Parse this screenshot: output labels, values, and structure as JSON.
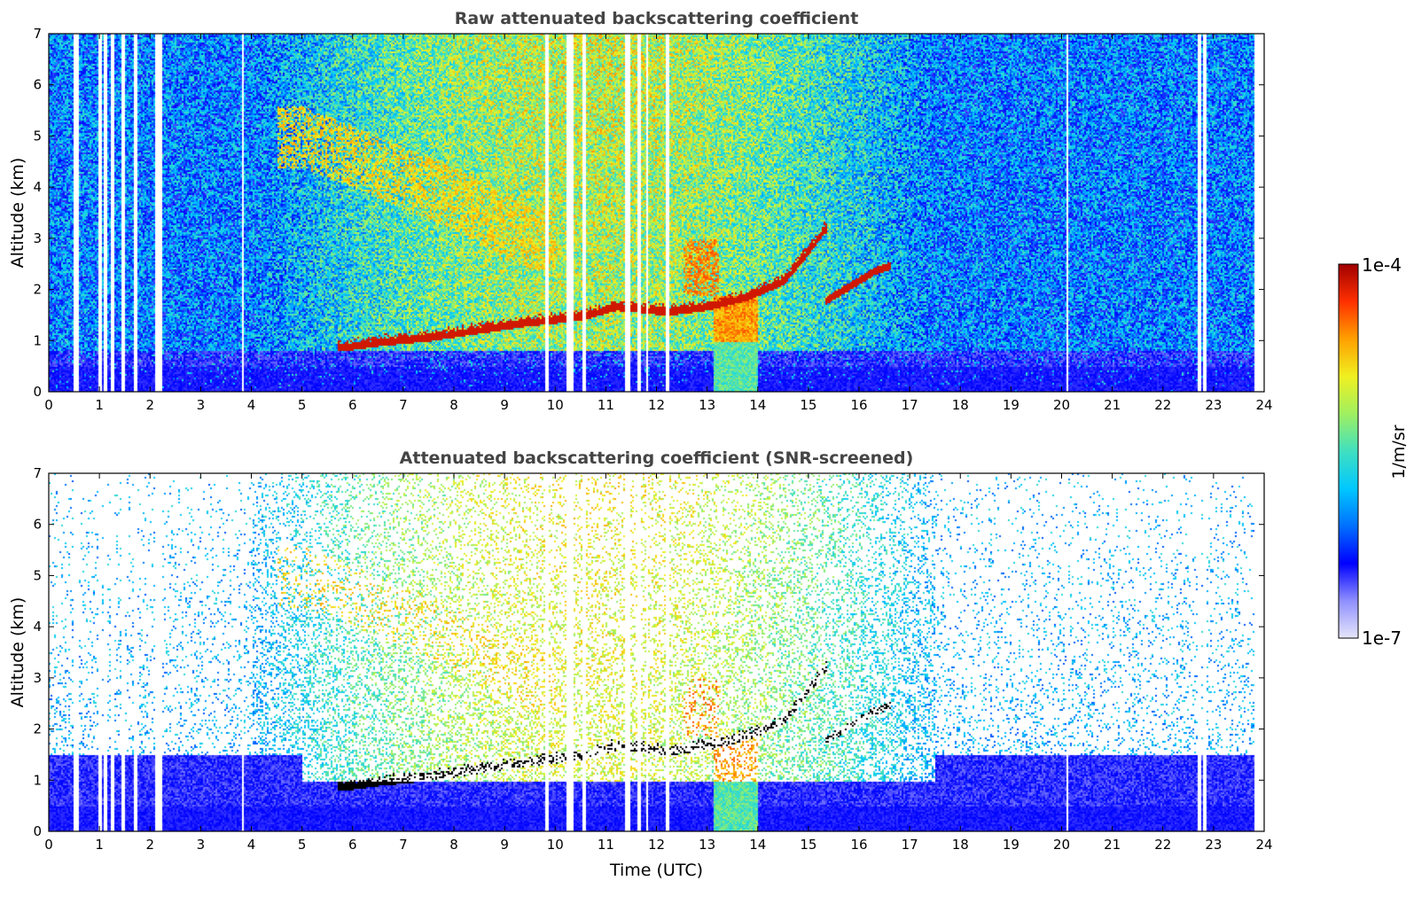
{
  "chart_data": [
    {
      "type": "heatmap",
      "title": "Raw attenuated backscattering coefficient",
      "xlabel": "",
      "ylabel": "Altitude (km)",
      "xlim": [
        0,
        24
      ],
      "ylim": [
        0,
        7
      ],
      "x_ticks": [
        "0",
        "1",
        "2",
        "3",
        "4",
        "5",
        "6",
        "7",
        "8",
        "9",
        "10",
        "11",
        "12",
        "13",
        "14",
        "15",
        "16",
        "17",
        "18",
        "19",
        "20",
        "21",
        "22",
        "23",
        "24"
      ],
      "y_ticks": [
        "0",
        "1",
        "2",
        "3",
        "4",
        "5",
        "6",
        "7"
      ],
      "screened": false
    },
    {
      "type": "heatmap",
      "title": "Attenuated backscattering coefficient (SNR-screened)",
      "xlabel": "Time (UTC)",
      "ylabel": "Altitude (km)",
      "xlim": [
        0,
        24
      ],
      "ylim": [
        0,
        7
      ],
      "x_ticks": [
        "0",
        "1",
        "2",
        "3",
        "4",
        "5",
        "6",
        "7",
        "8",
        "9",
        "10",
        "11",
        "12",
        "13",
        "14",
        "15",
        "16",
        "17",
        "18",
        "19",
        "20",
        "21",
        "22",
        "23",
        "24"
      ],
      "y_ticks": [
        "0",
        "1",
        "2",
        "3",
        "4",
        "5",
        "6",
        "7"
      ],
      "screened": true
    }
  ],
  "colorbar": {
    "label": "1/m/sr",
    "max_label": "1e-4",
    "min_label": "1e-7",
    "scale": "log",
    "range": [
      1e-07,
      0.0001
    ],
    "colors": [
      "#e6e6fa",
      "#8f8fff",
      "#0000ff",
      "#0070ff",
      "#00c8ff",
      "#40e0c0",
      "#a0f060",
      "#f0f020",
      "#ffa000",
      "#ff3000",
      "#a00000"
    ]
  },
  "features": {
    "data_end_hour": 23.8,
    "gap_hours": [
      0.5,
      0.55,
      1.0,
      1.1,
      1.25,
      1.45,
      1.7,
      2.12,
      2.18,
      3.82,
      9.82,
      10.25,
      10.32,
      10.55,
      11.38,
      11.43,
      11.65,
      11.8,
      12.2,
      20.1,
      22.7,
      22.8
    ],
    "cloud_base_km": [
      [
        5.8,
        0.8
      ],
      [
        6.5,
        0.9
      ],
      [
        7.5,
        1.0
      ],
      [
        8.5,
        1.15
      ],
      [
        9.5,
        1.3
      ],
      [
        10.5,
        1.4
      ],
      [
        11.2,
        1.6
      ],
      [
        12.2,
        1.5
      ],
      [
        13.0,
        1.6
      ],
      [
        13.8,
        1.8
      ],
      [
        14.5,
        2.1
      ],
      [
        15.0,
        2.7
      ],
      [
        15.3,
        3.1
      ]
    ],
    "elevated_layer_km": [
      [
        15.3,
        1.7
      ],
      [
        15.8,
        2.0
      ],
      [
        16.3,
        2.3
      ],
      [
        16.6,
        2.4
      ]
    ],
    "aerosol_column_hours": [
      13.1,
      14.0
    ],
    "upper_layer_km": [
      [
        5.0,
        5.0
      ],
      [
        6.0,
        4.6
      ],
      [
        7.0,
        4.2
      ],
      [
        8.2,
        3.7
      ],
      [
        9.5,
        3.0
      ]
    ]
  }
}
